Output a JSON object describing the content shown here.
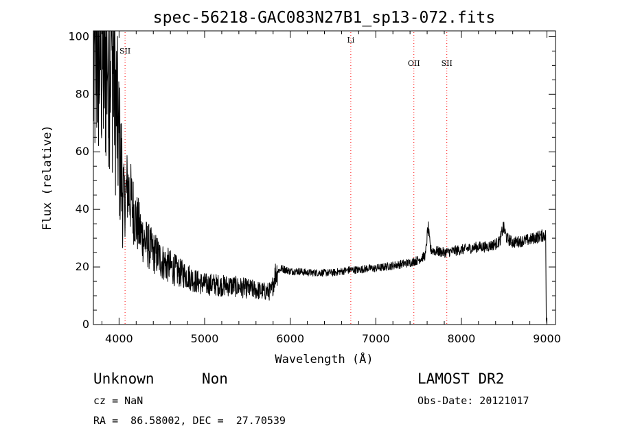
{
  "chart_data": {
    "type": "line",
    "title": "spec-56218-GAC083N27B1_sp13-072.fits",
    "xlabel": "Wavelength (Å)",
    "ylabel": "Flux (relative)",
    "xlim": [
      3700,
      9100
    ],
    "ylim": [
      0,
      102
    ],
    "x_ticks": [
      "4000",
      "5000",
      "6000",
      "7000",
      "8000",
      "9000"
    ],
    "y_ticks": [
      "0",
      "20",
      "40",
      "60",
      "80",
      "100"
    ],
    "grid": false,
    "line_color": "#000000",
    "marker_color": "#ff0000",
    "markers": [
      {
        "label": "SII",
        "x": 4070
      },
      {
        "label": "Li",
        "x": 6708
      },
      {
        "label": "OII",
        "x": 7445
      },
      {
        "label": "SII",
        "x": 7830
      }
    ],
    "series": [
      {
        "points": [
          [
            3700,
            85
          ],
          [
            3740,
            95
          ],
          [
            3780,
            96
          ],
          [
            3820,
            90
          ],
          [
            3860,
            94
          ],
          [
            3900,
            99
          ],
          [
            3940,
            88
          ],
          [
            3980,
            70
          ],
          [
            4020,
            55
          ],
          [
            4060,
            42
          ],
          [
            4100,
            48
          ],
          [
            4150,
            42
          ],
          [
            4200,
            36
          ],
          [
            4250,
            32
          ],
          [
            4300,
            29
          ],
          [
            4350,
            27
          ],
          [
            4400,
            25
          ],
          [
            4450,
            24
          ],
          [
            4500,
            22
          ],
          [
            4600,
            20
          ],
          [
            4700,
            18
          ],
          [
            4800,
            17
          ],
          [
            4900,
            15
          ],
          [
            5000,
            14
          ],
          [
            5100,
            14
          ],
          [
            5200,
            13.5
          ],
          [
            5300,
            13.5
          ],
          [
            5400,
            13
          ],
          [
            5500,
            12.5
          ],
          [
            5600,
            12
          ],
          [
            5700,
            11.5
          ],
          [
            5780,
            11.5
          ],
          [
            5830,
            18
          ],
          [
            5900,
            19.5
          ],
          [
            6000,
            18.5
          ],
          [
            6100,
            18.5
          ],
          [
            6200,
            18
          ],
          [
            6300,
            18
          ],
          [
            6400,
            18
          ],
          [
            6500,
            18
          ],
          [
            6600,
            18.5
          ],
          [
            6700,
            19
          ],
          [
            6800,
            19
          ],
          [
            6900,
            19.5
          ],
          [
            7000,
            19.5
          ],
          [
            7100,
            20
          ],
          [
            7200,
            20.5
          ],
          [
            7300,
            21
          ],
          [
            7400,
            21.5
          ],
          [
            7500,
            22.5
          ],
          [
            7580,
            24
          ],
          [
            7610,
            34
          ],
          [
            7640,
            26
          ],
          [
            7700,
            25.5
          ],
          [
            7800,
            25
          ],
          [
            7900,
            25.5
          ],
          [
            8000,
            26
          ],
          [
            8100,
            26.5
          ],
          [
            8200,
            27
          ],
          [
            8300,
            27
          ],
          [
            8400,
            28
          ],
          [
            8450,
            29
          ],
          [
            8490,
            34
          ],
          [
            8530,
            30
          ],
          [
            8600,
            28.5
          ],
          [
            8700,
            29
          ],
          [
            8800,
            29.5
          ],
          [
            8900,
            30.5
          ],
          [
            8960,
            31
          ],
          [
            8985,
            31
          ],
          [
            8992,
            2
          ],
          [
            9000,
            0
          ]
        ]
      }
    ]
  },
  "info": {
    "object_class": "Unknown",
    "subclass": "Non",
    "cz": "cz = NaN",
    "coords": "RA =  86.58002, DEC =  27.70539",
    "survey": "LAMOST DR2",
    "obs_date": "Obs-Date: 20121017"
  }
}
